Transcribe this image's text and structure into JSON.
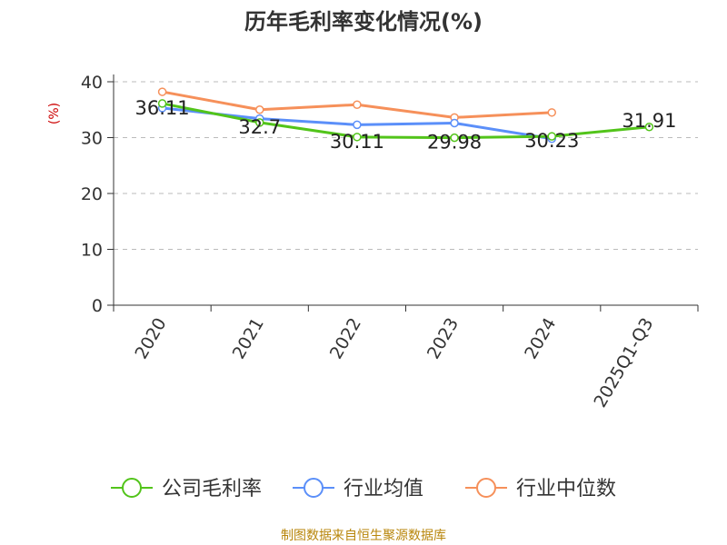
{
  "chart_data": {
    "type": "line",
    "title": "历年毛利率变化情况(%)",
    "ylabel": "(%)",
    "categories": [
      "2020",
      "2021",
      "2022",
      "2023",
      "2024",
      "2025Q1-Q3"
    ],
    "ylim": [
      0,
      40
    ],
    "yticks": [
      0,
      10,
      20,
      30,
      40
    ],
    "grid": true,
    "legend_position": "bottom",
    "series": [
      {
        "name": "公司毛利率",
        "color": "#52c41a",
        "values": [
          36.11,
          32.7,
          30.11,
          29.98,
          30.23,
          31.91
        ],
        "labels": [
          "36.11",
          "32.7",
          "30.11",
          "29.98",
          "30.23",
          "31.91"
        ]
      },
      {
        "name": "行业均值",
        "color": "#5b8ff9",
        "values": [
          35.3,
          33.4,
          32.3,
          32.6,
          29.8,
          null
        ]
      },
      {
        "name": "行业中位数",
        "color": "#f6905a",
        "values": [
          38.2,
          35.0,
          35.9,
          33.6,
          34.5,
          null
        ]
      }
    ]
  },
  "footer": {
    "source": "制图数据来自恒生聚源数据库"
  }
}
